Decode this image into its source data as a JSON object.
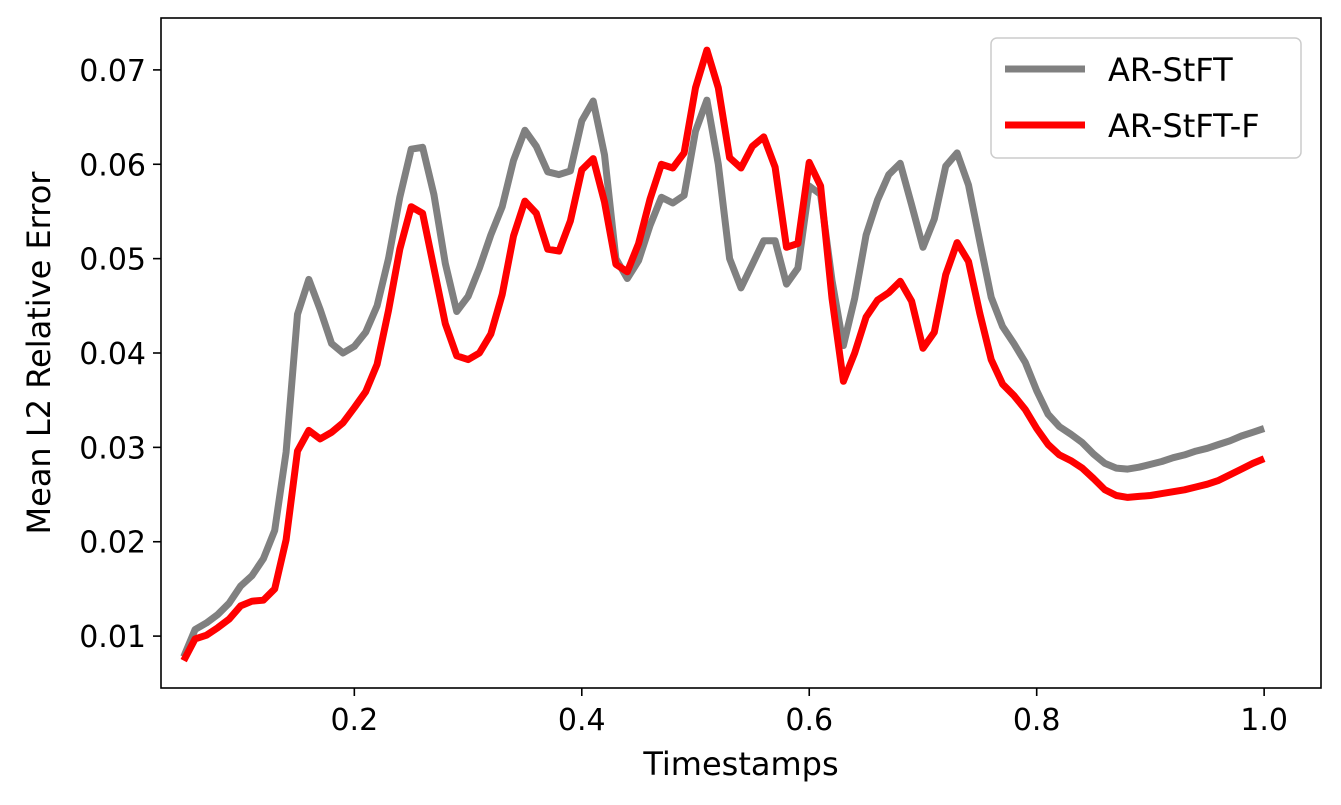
{
  "chart_data": {
    "type": "line",
    "title": "",
    "xlabel": "Timestamps",
    "ylabel": "Mean L2 Relative Error",
    "xlim": [
      0.03,
      1.05
    ],
    "ylim": [
      0.0045,
      0.0755
    ],
    "xticks": [
      0.2,
      0.4,
      0.6,
      0.8,
      1.0
    ],
    "xtick_labels": [
      "0.2",
      "0.4",
      "0.6",
      "0.8",
      "1.0"
    ],
    "yticks": [
      0.01,
      0.02,
      0.03,
      0.04,
      0.05,
      0.06,
      0.07
    ],
    "ytick_labels": [
      "0.01",
      "0.02",
      "0.03",
      "0.04",
      "0.05",
      "0.06",
      "0.07"
    ],
    "grid": false,
    "legend_position": "top-right",
    "x": [
      0.05,
      0.06,
      0.07,
      0.08,
      0.09,
      0.1,
      0.11,
      0.12,
      0.13,
      0.14,
      0.15,
      0.16,
      0.17,
      0.18,
      0.19,
      0.2,
      0.21,
      0.22,
      0.23,
      0.24,
      0.25,
      0.26,
      0.27,
      0.28,
      0.29,
      0.3,
      0.31,
      0.32,
      0.33,
      0.34,
      0.35,
      0.36,
      0.37,
      0.38,
      0.39,
      0.4,
      0.41,
      0.42,
      0.43,
      0.44,
      0.45,
      0.46,
      0.47,
      0.48,
      0.49,
      0.5,
      0.51,
      0.52,
      0.53,
      0.54,
      0.55,
      0.56,
      0.57,
      0.58,
      0.59,
      0.6,
      0.61,
      0.62,
      0.63,
      0.64,
      0.65,
      0.66,
      0.67,
      0.68,
      0.69,
      0.7,
      0.71,
      0.72,
      0.73,
      0.74,
      0.75,
      0.76,
      0.77,
      0.78,
      0.79,
      0.8,
      0.81,
      0.82,
      0.83,
      0.84,
      0.85,
      0.86,
      0.87,
      0.88,
      0.89,
      0.9,
      0.91,
      0.92,
      0.93,
      0.94,
      0.95,
      0.96,
      0.97,
      0.98,
      0.99,
      1.0
    ],
    "series": [
      {
        "name": "AR-StFT",
        "color": "#808080",
        "values": [
          0.0078,
          0.0107,
          0.0114,
          0.0123,
          0.0135,
          0.0153,
          0.0164,
          0.0182,
          0.0212,
          0.0295,
          0.0441,
          0.0478,
          0.0446,
          0.041,
          0.04,
          0.0407,
          0.0422,
          0.045,
          0.05,
          0.0565,
          0.0616,
          0.0618,
          0.0568,
          0.0495,
          0.0444,
          0.046,
          0.049,
          0.0525,
          0.0555,
          0.0604,
          0.0636,
          0.0619,
          0.0592,
          0.0589,
          0.0593,
          0.0646,
          0.0667,
          0.061,
          0.05,
          0.0479,
          0.0498,
          0.0535,
          0.0565,
          0.0559,
          0.0567,
          0.0635,
          0.0668,
          0.06,
          0.05,
          0.0469,
          0.0494,
          0.0519,
          0.0519,
          0.0473,
          0.049,
          0.0577,
          0.0568,
          0.0477,
          0.0408,
          0.0458,
          0.0525,
          0.0562,
          0.0589,
          0.0601,
          0.0557,
          0.0512,
          0.0542,
          0.0598,
          0.0612,
          0.0578,
          0.0518,
          0.0459,
          0.0428,
          0.041,
          0.039,
          0.036,
          0.0335,
          0.0322,
          0.0314,
          0.0305,
          0.0293,
          0.0283,
          0.0278,
          0.0277,
          0.0279,
          0.0282,
          0.0285,
          0.0289,
          0.0292,
          0.0296,
          0.0299,
          0.0303,
          0.0307,
          0.0312,
          0.0316,
          0.032
        ]
      },
      {
        "name": "AR-StFT-F",
        "color": "#ff0000",
        "values": [
          0.0074,
          0.0097,
          0.0101,
          0.0109,
          0.0118,
          0.0132,
          0.0137,
          0.0138,
          0.015,
          0.0202,
          0.0296,
          0.0318,
          0.0309,
          0.0316,
          0.0326,
          0.0342,
          0.0359,
          0.0388,
          0.0445,
          0.051,
          0.0555,
          0.0548,
          0.049,
          0.0431,
          0.0397,
          0.0393,
          0.04,
          0.042,
          0.0462,
          0.0524,
          0.0561,
          0.0548,
          0.051,
          0.0508,
          0.054,
          0.0594,
          0.0606,
          0.056,
          0.0494,
          0.0486,
          0.0516,
          0.0563,
          0.06,
          0.0596,
          0.0612,
          0.0681,
          0.0721,
          0.0681,
          0.0607,
          0.0596,
          0.0619,
          0.0629,
          0.0597,
          0.0512,
          0.0516,
          0.0602,
          0.0577,
          0.0458,
          0.037,
          0.04,
          0.0438,
          0.0456,
          0.0464,
          0.0476,
          0.0455,
          0.0405,
          0.0422,
          0.0483,
          0.0517,
          0.0497,
          0.0442,
          0.0393,
          0.0367,
          0.0355,
          0.034,
          0.032,
          0.0303,
          0.0292,
          0.0286,
          0.0278,
          0.0267,
          0.0255,
          0.0249,
          0.0247,
          0.0248,
          0.0249,
          0.0251,
          0.0253,
          0.0255,
          0.0258,
          0.0261,
          0.0265,
          0.0271,
          0.0277,
          0.0283,
          0.0288
        ]
      }
    ]
  }
}
